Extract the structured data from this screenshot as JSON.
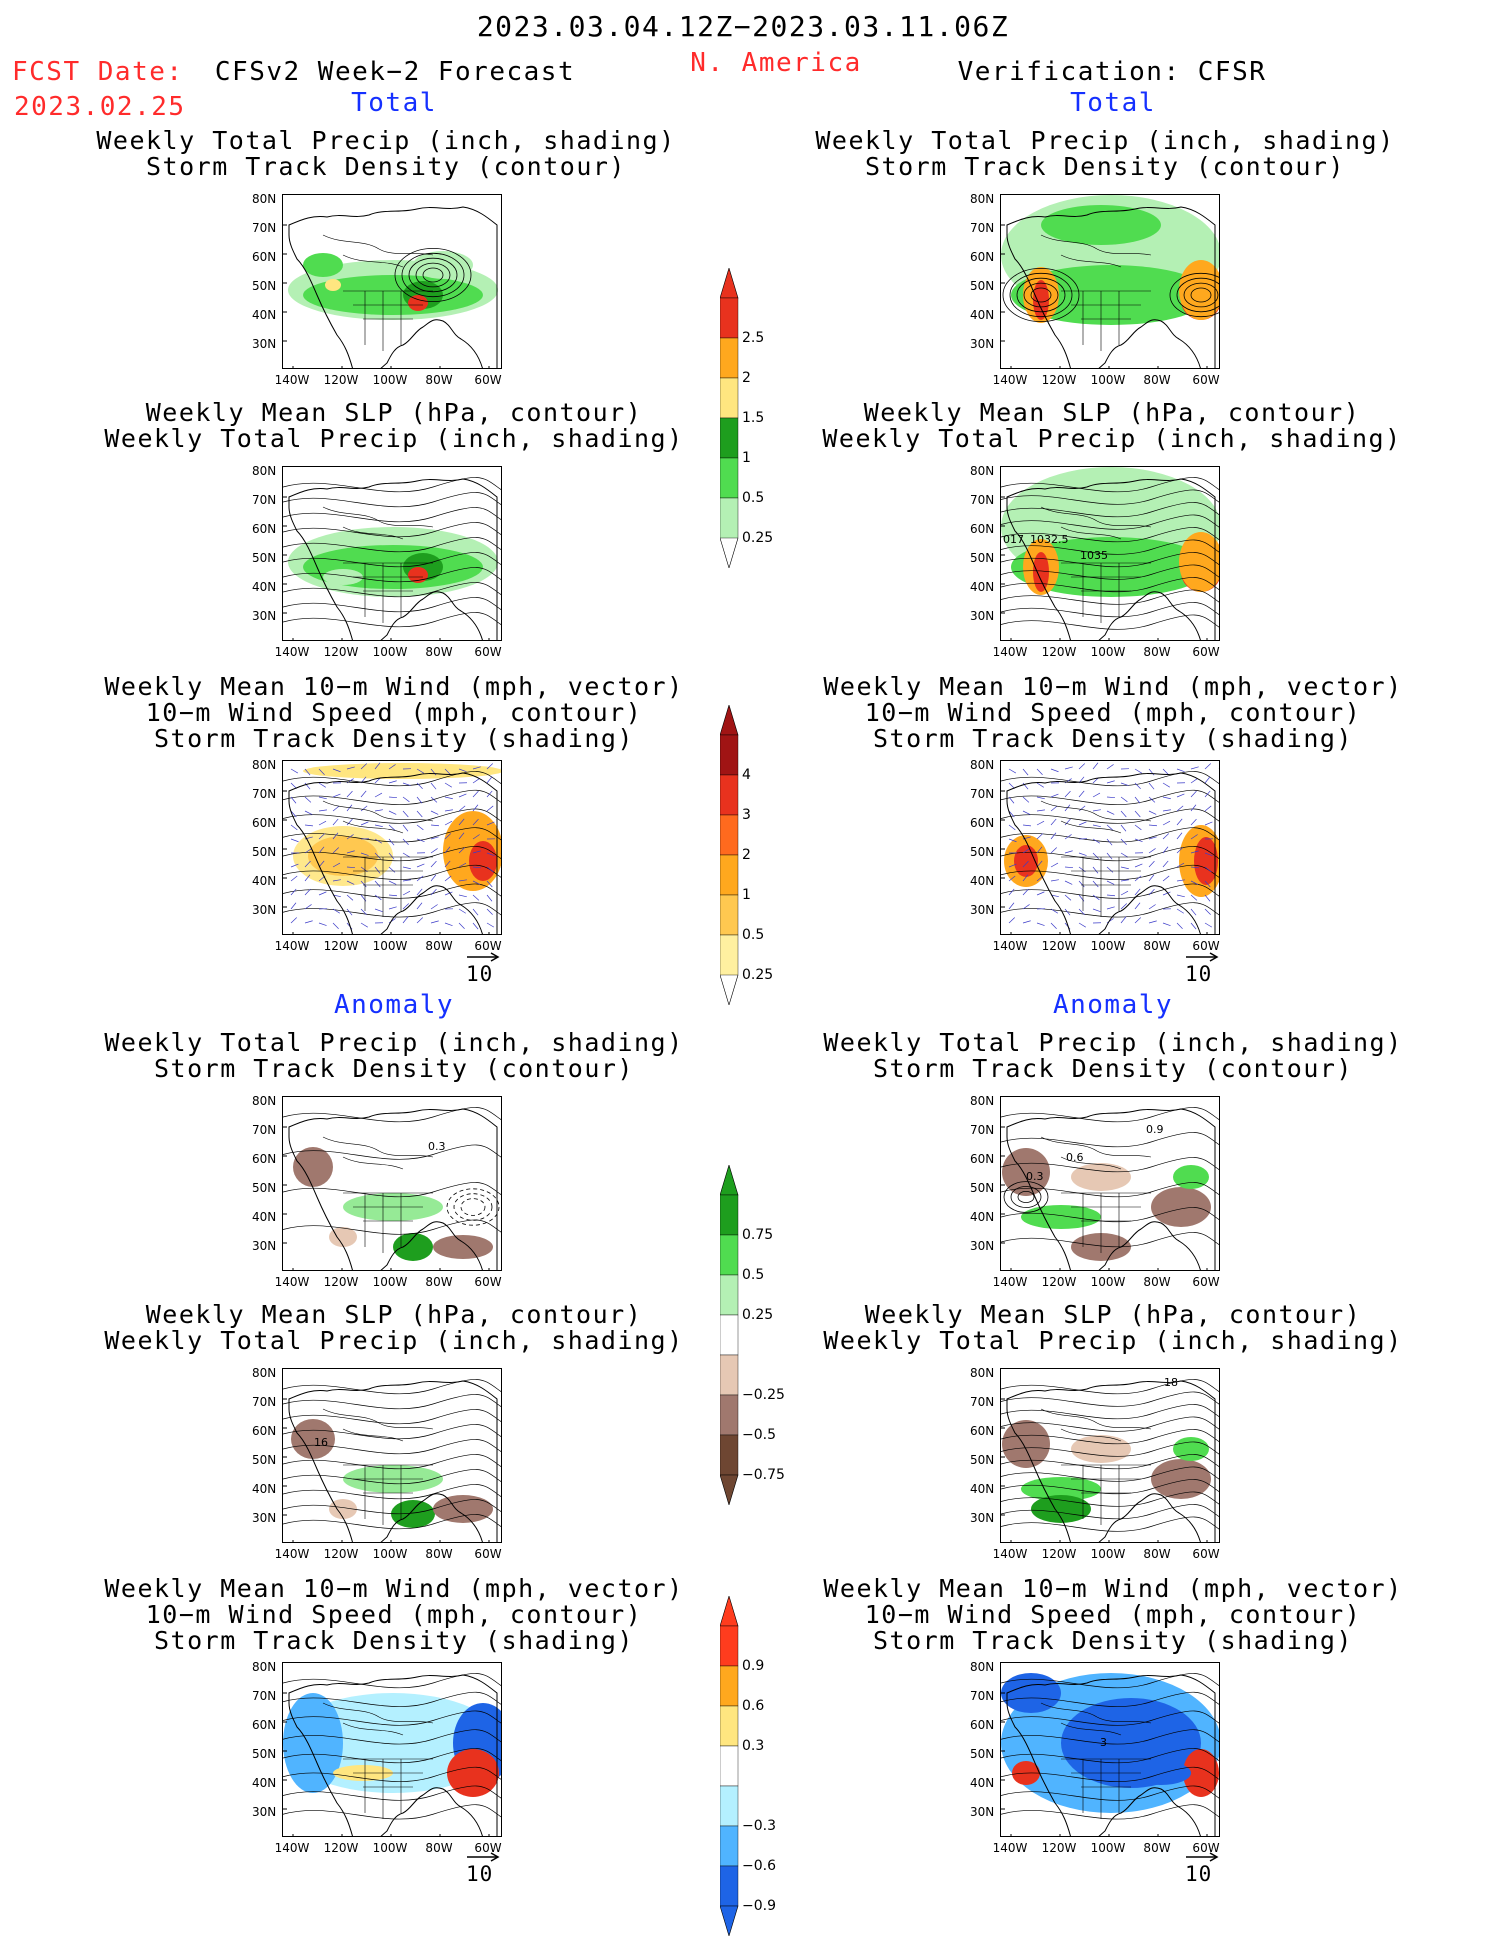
{
  "header": {
    "period": "2023.03.04.12Z−2023.03.11.06Z",
    "region": "N. America",
    "fcst_label": "FCST Date:",
    "fcst_date": "2023.02.25",
    "left_title": "CFSv2 Week−2 Forecast",
    "right_title": "Verification: CFSR"
  },
  "sections": {
    "total": "Total",
    "anomaly": "Anomaly"
  },
  "panel_titles": {
    "precip_storm": [
      "Weekly Total Precip (inch, shading)",
      "Storm Track Density (contour)"
    ],
    "slp_precip": [
      "Weekly Mean SLP (hPa, contour)",
      "Weekly Total Precip (inch, shading)"
    ],
    "wind_storm": [
      "Weekly Mean 10−m Wind (mph, vector)",
      "10−m Wind Speed (mph, contour)",
      "Storm Track Density (shading)"
    ]
  },
  "axes": {
    "lat_labels": [
      "80N",
      "70N",
      "60N",
      "50N",
      "40N",
      "30N"
    ],
    "lon_labels": [
      "140W",
      "120W",
      "100W",
      "80W",
      "60W"
    ]
  },
  "vector_ref": "10",
  "colorbars": {
    "precip_total": {
      "labels": [
        "2.5",
        "2",
        "1.5",
        "1",
        "0.5",
        "0.25"
      ],
      "colors": [
        "#e8321e",
        "#ffa81e",
        "#ffe680",
        "#1e9e1e",
        "#50dc50",
        "#b4f0b4"
      ]
    },
    "storm_total": {
      "labels": [
        "4",
        "3",
        "2",
        "1",
        "0.5",
        "0.25"
      ],
      "colors": [
        "#a01414",
        "#e8321e",
        "#ff6a1e",
        "#ffa81e",
        "#ffc850",
        "#fff0a0"
      ]
    },
    "precip_anom": {
      "labels": [
        "0.75",
        "0.5",
        "0.25",
        "−0.25",
        "−0.5",
        "−0.75"
      ],
      "colors": [
        "#1e9e1e",
        "#50dc50",
        "#b4f0b4",
        "#ffffff",
        "#e6c8b4",
        "#a0786e",
        "#6e4632"
      ]
    },
    "storm_anom": {
      "labels": [
        "0.9",
        "0.6",
        "0.3",
        "−0.3",
        "−0.6",
        "−0.9"
      ],
      "colors": [
        "#ff3c1e",
        "#ffa81e",
        "#ffe680",
        "#ffffff",
        "#b4f0ff",
        "#50b4ff",
        "#1e64e6"
      ]
    }
  },
  "map_annotations": {
    "right_slp_total": [
      "017",
      "1032.5",
      "1035"
    ],
    "left_anom_precip": "0.3",
    "right_anom_precip": [
      "0.9",
      "0.6",
      "0.3"
    ],
    "left_anom_slp": "16",
    "right_anom_slp": "18",
    "right_anom_wind": "3"
  }
}
